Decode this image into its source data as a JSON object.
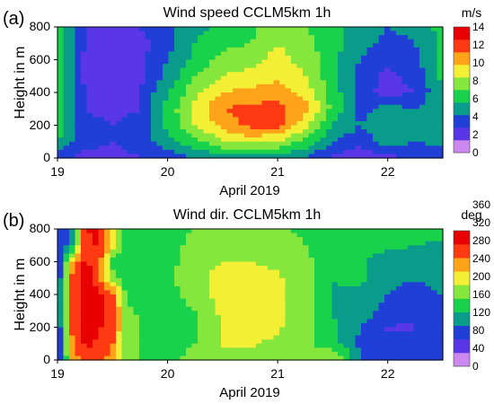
{
  "chart_data": [
    {
      "type": "heatmap",
      "panel_label": "(a)",
      "title": "Wind speed CCLM5km 1h",
      "xlabel": "April 2019",
      "ylabel": "Height in m",
      "xlim": [
        19,
        22.5
      ],
      "ylim": [
        0,
        800
      ],
      "x_ticks": [
        "19",
        "20",
        "21",
        "22"
      ],
      "y_ticks": [
        "0",
        "200",
        "400",
        "600",
        "800"
      ],
      "colorbar": {
        "unit": "m/s",
        "levels": [
          0,
          2,
          4,
          6,
          8,
          10,
          12,
          14,
          15
        ],
        "tick_labels": [
          "0",
          "2",
          "4",
          "6",
          "8",
          "10",
          "12",
          "14"
        ],
        "colors": [
          "#cc88ee",
          "#5a37e6",
          "#1f3fd6",
          "#0a9c8a",
          "#19d24b",
          "#85e63c",
          "#f2ef34",
          "#ffa319",
          "#ff3a12",
          "#e80000"
        ]
      },
      "grid": {
        "x": [
          19.0,
          19.25,
          19.5,
          19.75,
          20.0,
          20.25,
          20.5,
          20.75,
          21.0,
          21.25,
          21.5,
          21.75,
          22.0,
          22.25,
          22.5
        ],
        "y": [
          0,
          100,
          200,
          300,
          400,
          500,
          600,
          700,
          800
        ],
        "z": [
          [
            3.5,
            2.5,
            2.5,
            3.0,
            3.5,
            4.5,
            5.5,
            5.5,
            5.5,
            4.5,
            2.5,
            2.0,
            2.5,
            3.0,
            3.5
          ],
          [
            6.0,
            3.5,
            3.0,
            3.5,
            5.5,
            7.0,
            9.0,
            9.5,
            9.0,
            7.0,
            4.5,
            3.5,
            5.5,
            4.5,
            5.0
          ],
          [
            7.0,
            3.5,
            3.0,
            3.5,
            6.5,
            9.0,
            11.0,
            12.5,
            12.5,
            9.5,
            6.0,
            4.5,
            5.5,
            5.0,
            6.0
          ],
          [
            7.0,
            3.0,
            2.5,
            3.0,
            6.5,
            9.5,
            12.0,
            12.5,
            12.5,
            11.0,
            7.0,
            4.0,
            5.0,
            4.5,
            6.0
          ],
          [
            7.0,
            3.0,
            2.5,
            3.0,
            6.0,
            8.5,
            10.5,
            11.0,
            11.5,
            10.0,
            7.0,
            3.5,
            2.5,
            3.0,
            6.0
          ],
          [
            7.0,
            2.5,
            2.5,
            2.5,
            5.0,
            7.5,
            9.0,
            9.5,
            10.0,
            9.0,
            6.5,
            4.0,
            2.5,
            3.5,
            6.5
          ],
          [
            7.0,
            2.5,
            2.0,
            2.5,
            4.5,
            6.5,
            8.0,
            8.5,
            9.5,
            8.5,
            6.5,
            4.5,
            3.5,
            4.0,
            6.5
          ],
          [
            7.0,
            3.0,
            1.5,
            2.5,
            4.0,
            6.0,
            7.0,
            7.5,
            9.0,
            8.0,
            6.5,
            5.0,
            4.0,
            4.5,
            6.5
          ],
          [
            7.0,
            3.0,
            2.0,
            3.0,
            4.0,
            5.5,
            6.5,
            7.0,
            8.5,
            7.5,
            6.5,
            5.5,
            4.5,
            5.0,
            6.5
          ]
        ]
      }
    },
    {
      "type": "heatmap",
      "panel_label": "(b)",
      "title": "Wind dir. CCLM5km 1h",
      "xlabel": "April 2019",
      "ylabel": "Height in m",
      "xlim": [
        19,
        22.5
      ],
      "ylim": [
        0,
        800
      ],
      "x_ticks": [
        "19",
        "20",
        "21",
        "22"
      ],
      "y_ticks": [
        "0",
        "200",
        "400",
        "600",
        "800"
      ],
      "colorbar": {
        "unit": "deg",
        "levels": [
          0,
          40,
          80,
          120,
          160,
          200,
          240,
          280,
          320,
          360
        ],
        "tick_labels": [
          "0",
          "40",
          "80",
          "120",
          "160",
          "200",
          "240",
          "280",
          "320",
          "360"
        ],
        "colors": [
          "#cc88ee",
          "#5a37e6",
          "#1f3fd6",
          "#0a9c8a",
          "#19d24b",
          "#85e63c",
          "#f2ef34",
          "#ffa319",
          "#ff3a12",
          "#e80000"
        ]
      },
      "grid": {
        "x": [
          19.0,
          19.125,
          19.25,
          19.375,
          19.5,
          19.625,
          19.75,
          20.0,
          20.25,
          20.5,
          20.75,
          21.0,
          21.25,
          21.5,
          21.75,
          22.0,
          22.25,
          22.5
        ],
        "y": [
          0,
          100,
          200,
          300,
          400,
          500,
          600,
          700,
          800
        ],
        "z": [
          [
            40,
            250,
            320,
            300,
            270,
            180,
            180,
            170,
            190,
            200,
            200,
            200,
            180,
            230,
            110,
            90,
            100,
            110
          ],
          [
            50,
            280,
            330,
            320,
            290,
            190,
            180,
            170,
            180,
            220,
            220,
            210,
            190,
            160,
            100,
            80,
            80,
            100
          ],
          [
            60,
            290,
            330,
            330,
            300,
            200,
            175,
            170,
            170,
            220,
            230,
            220,
            200,
            150,
            110,
            70,
            70,
            90
          ],
          [
            60,
            300,
            330,
            330,
            310,
            190,
            175,
            160,
            180,
            225,
            230,
            225,
            200,
            140,
            130,
            90,
            80,
            90
          ],
          [
            60,
            300,
            340,
            335,
            300,
            170,
            165,
            165,
            200,
            230,
            235,
            225,
            200,
            140,
            140,
            110,
            90,
            110
          ],
          [
            60,
            290,
            340,
            300,
            200,
            160,
            160,
            170,
            210,
            225,
            230,
            220,
            200,
            145,
            150,
            120,
            110,
            120
          ],
          [
            60,
            250,
            330,
            310,
            150,
            150,
            170,
            165,
            205,
            215,
            215,
            210,
            190,
            150,
            150,
            130,
            130,
            120
          ],
          [
            70,
            120,
            310,
            330,
            250,
            150,
            175,
            165,
            190,
            200,
            200,
            195,
            180,
            155,
            150,
            150,
            145,
            140
          ],
          [
            70,
            100,
            320,
            340,
            250,
            160,
            175,
            170,
            180,
            190,
            190,
            185,
            175,
            160,
            155,
            150,
            150,
            150
          ]
        ]
      }
    }
  ]
}
